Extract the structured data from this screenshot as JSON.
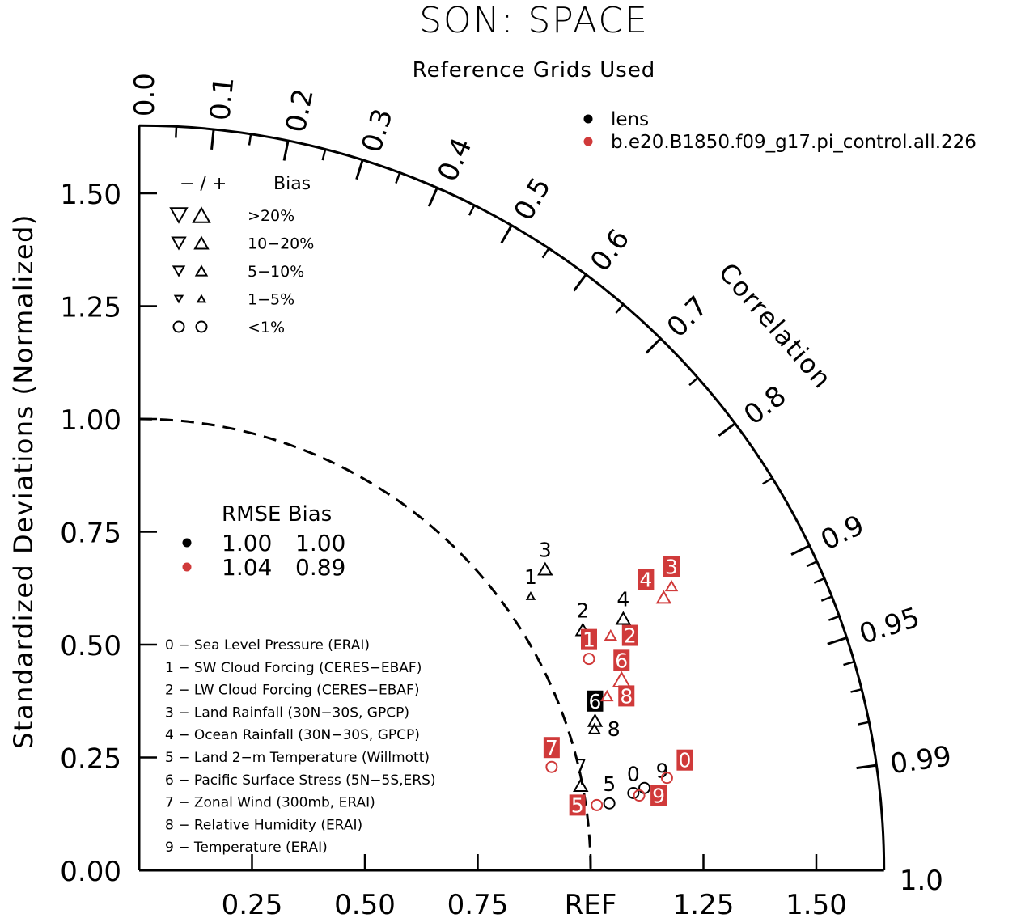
{
  "chart_data": {
    "type": "scatter",
    "subtype": "taylor-diagram",
    "title": "SON: SPACE",
    "subtitle": "Reference Grids Used",
    "ylabel": "Standardized Deviations (Normalized)",
    "angular_label": "Correlation",
    "std_range": [
      0,
      1.65
    ],
    "std_ticks": [
      0,
      0.25,
      0.5,
      0.75,
      1.0,
      1.25,
      1.5
    ],
    "y_tick_labels": [
      "0.00",
      "0.25",
      "0.50",
      "0.75",
      "1.00",
      "1.25",
      "1.50"
    ],
    "x_tick_labels": [
      "0.25",
      "0.50",
      "0.75",
      "REF",
      "1.25",
      "1.50"
    ],
    "corr_major": [
      0.0,
      0.1,
      0.2,
      0.3,
      0.4,
      0.5,
      0.6,
      0.7,
      0.8,
      0.9,
      0.95,
      0.99,
      1.0
    ],
    "corr_labels": [
      "0.0",
      "0.1",
      "0.2",
      "0.3",
      "0.4",
      "0.5",
      "0.6",
      "0.7",
      "0.8",
      "0.9",
      "0.95",
      "0.99",
      "1.0"
    ],
    "corr_minor": [
      0.05,
      0.15,
      0.25,
      0.35,
      0.45,
      0.55,
      0.65,
      0.75,
      0.85,
      0.91,
      0.92,
      0.93,
      0.94,
      0.96,
      0.97,
      0.98
    ],
    "reference_arc": 1.0,
    "series": [
      {
        "name": "lens",
        "color": "#000000",
        "rmse": "1.00",
        "bias": "1.00",
        "points": [
          {
            "id": "0",
            "std": 1.108,
            "corr": 0.988,
            "bias_class": "<1%",
            "sign": "+"
          },
          {
            "id": "1",
            "std": 1.059,
            "corr": 0.819,
            "bias_class": "1-5%",
            "sign": "+"
          },
          {
            "id": "2",
            "std": 1.118,
            "corr": 0.879,
            "bias_class": "10-20%",
            "sign": "+"
          },
          {
            "id": "3",
            "std": 1.12,
            "corr": 0.803,
            "bias_class": "10-20%",
            "sign": "+"
          },
          {
            "id": "4",
            "std": 1.209,
            "corr": 0.887,
            "bias_class": "10-20%",
            "sign": "+"
          },
          {
            "id": "5",
            "std": 1.052,
            "corr": 0.99,
            "bias_class": "<1%",
            "sign": "+"
          },
          {
            "id": "6",
            "std": 1.063,
            "corr": 0.95,
            "bias_class": "10-20%",
            "sign": "+",
            "boxed": true
          },
          {
            "id": "7",
            "std": 0.996,
            "corr": 0.982,
            "bias_class": "10-20%",
            "sign": "+"
          },
          {
            "id": "8",
            "std": 1.056,
            "corr": 0.955,
            "bias_class": "5-10%",
            "sign": "+"
          },
          {
            "id": "9",
            "std": 1.134,
            "corr": 0.987,
            "bias_class": "<1%",
            "sign": "+"
          }
        ]
      },
      {
        "name": "b.e20.B1850.f09_g17.pi_control.all.226",
        "color": "#d03a3a",
        "rmse": "1.04",
        "bias": "0.89",
        "points": [
          {
            "id": "0",
            "std": 1.187,
            "corr": 0.985,
            "bias_class": "<1%",
            "sign": "+"
          },
          {
            "id": "1",
            "std": 1.101,
            "corr": 0.905,
            "bias_class": "<1%",
            "sign": "+"
          },
          {
            "id": "2",
            "std": 1.167,
            "corr": 0.895,
            "bias_class": "5-10%",
            "sign": "+"
          },
          {
            "id": "3",
            "std": 1.337,
            "corr": 0.882,
            "bias_class": "5-10%",
            "sign": "+"
          },
          {
            "id": "4",
            "std": 1.31,
            "corr": 0.887,
            "bias_class": "10-20%",
            "sign": "+"
          },
          {
            "id": "5",
            "std": 1.024,
            "corr": 0.99,
            "bias_class": "<1%",
            "sign": "+"
          },
          {
            "id": "6",
            "std": 1.149,
            "corr": 0.93,
            "bias_class": ">20%",
            "sign": "+"
          },
          {
            "id": "7",
            "std": 0.942,
            "corr": 0.97,
            "bias_class": "<1%",
            "sign": "+"
          },
          {
            "id": "8",
            "std": 1.106,
            "corr": 0.937,
            "bias_class": "5-10%",
            "sign": "+"
          },
          {
            "id": "9",
            "std": 1.12,
            "corr": 0.989,
            "bias_class": "<1%",
            "sign": "+"
          }
        ]
      }
    ],
    "bias_legend": {
      "header_sign": "−  /  +",
      "header_label": "Bias",
      "classes": [
        ">20%",
        "10−20%",
        "5−10%",
        "1−5%",
        "<1%"
      ]
    },
    "stats_legend": {
      "header": "RMSE Bias"
    },
    "cases": [
      "0 − Sea Level Pressure (ERAI)",
      "1 − SW Cloud Forcing (CERES−EBAF)",
      "2 − LW Cloud Forcing (CERES−EBAF)",
      "3 − Land Rainfall (30N−30S, GPCP)",
      "4 − Ocean Rainfall (30N−30S, GPCP)",
      "5 − Land 2−m Temperature (Willmott)",
      "6 − Pacific Surface Stress (5N−5S,ERS)",
      "7 − Zonal Wind (300mb, ERAI)",
      "8 − Relative Humidity (ERAI)",
      "9 − Temperature (ERAI)"
    ],
    "legend_placement": "top-right"
  }
}
